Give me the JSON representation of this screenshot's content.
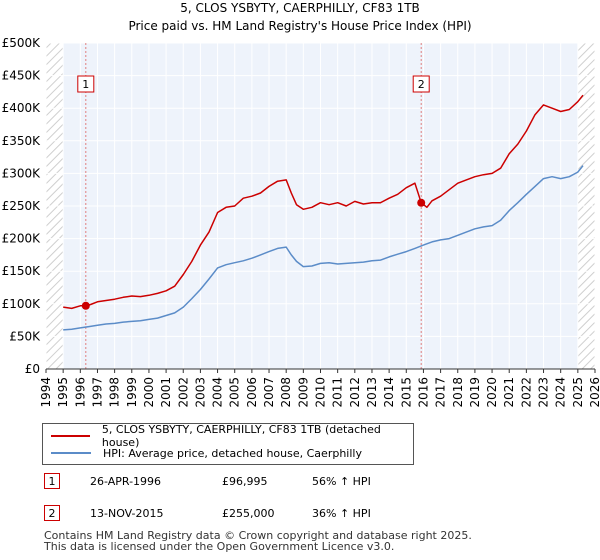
{
  "chart_data": {
    "type": "line",
    "title": "5, CLOS YSBYTY, CAERPHILLY, CF83 1TB",
    "subtitle": "Price paid vs. HM Land Registry's House Price Index (HPI)",
    "xlim": [
      1994,
      2026
    ],
    "ylim": [
      0,
      500000
    ],
    "x_ticks": [
      "1994",
      "1995",
      "1996",
      "1997",
      "1998",
      "1999",
      "2000",
      "2001",
      "2002",
      "2003",
      "2004",
      "2005",
      "2006",
      "2007",
      "2008",
      "2009",
      "2010",
      "2011",
      "2012",
      "2013",
      "2014",
      "2015",
      "2016",
      "2017",
      "2018",
      "2019",
      "2020",
      "2021",
      "2022",
      "2023",
      "2024",
      "2025",
      "2026"
    ],
    "y_ticks": [
      {
        "value": 0,
        "label": "£0"
      },
      {
        "value": 50000,
        "label": "£50K"
      },
      {
        "value": 100000,
        "label": "£100K"
      },
      {
        "value": 150000,
        "label": "£150K"
      },
      {
        "value": 200000,
        "label": "£200K"
      },
      {
        "value": 250000,
        "label": "£250K"
      },
      {
        "value": 300000,
        "label": "£300K"
      },
      {
        "value": 350000,
        "label": "£350K"
      },
      {
        "value": 400000,
        "label": "£400K"
      },
      {
        "value": 450000,
        "label": "£450K"
      },
      {
        "value": 500000,
        "label": "£500K"
      }
    ],
    "series": [
      {
        "name": "5, CLOS YSBYTY, CAERPHILLY, CF83 1TB (detached house)",
        "color": "#cc0000",
        "x": [
          1995.0,
          1995.5,
          1996.0,
          1996.32,
          1996.6,
          1997.0,
          1997.5,
          1998.0,
          1998.5,
          1999.0,
          1999.5,
          2000.0,
          2000.5,
          2001.0,
          2001.5,
          2002.0,
          2002.5,
          2003.0,
          2003.5,
          2004.0,
          2004.5,
          2005.0,
          2005.5,
          2006.0,
          2006.5,
          2007.0,
          2007.5,
          2008.0,
          2008.3,
          2008.6,
          2009.0,
          2009.5,
          2010.0,
          2010.5,
          2011.0,
          2011.5,
          2012.0,
          2012.5,
          2013.0,
          2013.5,
          2014.0,
          2014.5,
          2015.0,
          2015.5,
          2015.87,
          2016.2,
          2016.5,
          2017.0,
          2017.5,
          2018.0,
          2018.5,
          2019.0,
          2019.5,
          2020.0,
          2020.5,
          2021.0,
          2021.5,
          2022.0,
          2022.5,
          2023.0,
          2023.5,
          2024.0,
          2024.5,
          2025.0,
          2025.3
        ],
        "y": [
          95000,
          93000,
          97000,
          96995,
          99000,
          103000,
          105000,
          107000,
          110000,
          112000,
          111000,
          113000,
          116000,
          120000,
          127000,
          145000,
          165000,
          190000,
          210000,
          240000,
          248000,
          250000,
          262000,
          265000,
          270000,
          280000,
          288000,
          290000,
          270000,
          252000,
          245000,
          248000,
          255000,
          252000,
          255000,
          250000,
          257000,
          253000,
          255000,
          255000,
          262000,
          268000,
          278000,
          285000,
          255000,
          248000,
          258000,
          265000,
          275000,
          285000,
          290000,
          295000,
          298000,
          300000,
          308000,
          330000,
          345000,
          365000,
          390000,
          405000,
          400000,
          395000,
          398000,
          410000,
          420000
        ]
      },
      {
        "name": "HPI: Average price, detached house, Caerphilly",
        "color": "#5b8cc8",
        "x": [
          1995.0,
          1995.5,
          1996.0,
          1996.5,
          1997.0,
          1997.5,
          1998.0,
          1998.5,
          1999.0,
          1999.5,
          2000.0,
          2000.5,
          2001.0,
          2001.5,
          2002.0,
          2002.5,
          2003.0,
          2003.5,
          2004.0,
          2004.5,
          2005.0,
          2005.5,
          2006.0,
          2006.5,
          2007.0,
          2007.5,
          2008.0,
          2008.3,
          2008.6,
          2009.0,
          2009.5,
          2010.0,
          2010.5,
          2011.0,
          2011.5,
          2012.0,
          2012.5,
          2013.0,
          2013.5,
          2014.0,
          2014.5,
          2015.0,
          2015.5,
          2016.0,
          2016.5,
          2017.0,
          2017.5,
          2018.0,
          2018.5,
          2019.0,
          2019.5,
          2020.0,
          2020.5,
          2021.0,
          2021.5,
          2022.0,
          2022.5,
          2023.0,
          2023.5,
          2024.0,
          2024.5,
          2025.0,
          2025.3
        ],
        "y": [
          60000,
          61000,
          63000,
          65000,
          67000,
          69000,
          70000,
          72000,
          73000,
          74000,
          76000,
          78000,
          82000,
          86000,
          95000,
          108000,
          122000,
          138000,
          155000,
          160000,
          163000,
          166000,
          170000,
          175000,
          180000,
          185000,
          187000,
          175000,
          165000,
          157000,
          158000,
          162000,
          163000,
          161000,
          162000,
          163000,
          164000,
          166000,
          167000,
          172000,
          176000,
          180000,
          185000,
          190000,
          195000,
          198000,
          200000,
          205000,
          210000,
          215000,
          218000,
          220000,
          228000,
          243000,
          255000,
          268000,
          280000,
          292000,
          295000,
          292000,
          295000,
          302000,
          312000
        ]
      }
    ],
    "vertical_markers": [
      {
        "label": "1",
        "x": 1996.32
      },
      {
        "label": "2",
        "x": 2015.87
      }
    ],
    "sale_points": [
      {
        "x": 1996.32,
        "y": 96995
      },
      {
        "x": 2015.87,
        "y": 255000
      }
    ],
    "colors": {
      "plot_background": "#eef3fb",
      "hatch": "#c8c8c8",
      "grid": "#ffffff",
      "property_line": "#cc0000",
      "hpi_line": "#5b8cc8",
      "marker_line": "#e08080"
    }
  },
  "legend": {
    "property_label": "5, CLOS YSBYTY, CAERPHILLY, CF83 1TB (detached house)",
    "hpi_label": "HPI: Average price, detached house, Caerphilly"
  },
  "transactions": [
    {
      "num": "1",
      "date": "26-APR-1996",
      "price": "£96,995",
      "hpi": "56% ↑ HPI"
    },
    {
      "num": "2",
      "date": "13-NOV-2015",
      "price": "£255,000",
      "hpi": "36% ↑ HPI"
    }
  ],
  "footer": {
    "line1": "Contains HM Land Registry data © Crown copyright and database right 2025.",
    "line2": "This data is licensed under the Open Government Licence v3.0."
  }
}
